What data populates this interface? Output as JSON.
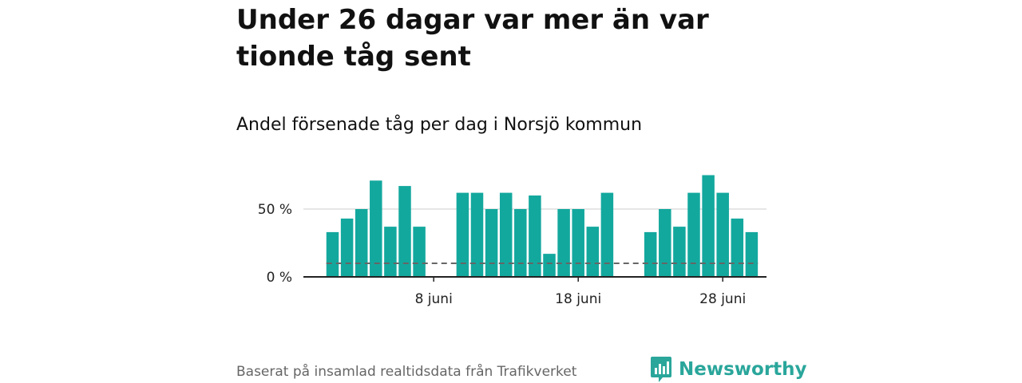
{
  "title": "Under 26 dagar var mer än var tionde tåg sent",
  "subtitle": "Andel försenade tåg per dag i Norsjö kommun",
  "source": "Baserat på insamlad realtidsdata från Trafikverket",
  "brand": "Newsworthy",
  "colors": {
    "bar": "#13a89e",
    "reference": "#666666",
    "grid": "#dddddd",
    "axis": "#222222",
    "brand": "#2aa69b"
  },
  "chart_data": {
    "type": "bar",
    "title": "Andel försenade tåg per dag i Norsjö kommun",
    "xlabel": "",
    "ylabel": "",
    "categories": [
      "1 juni",
      "2 juni",
      "3 juni",
      "4 juni",
      "5 juni",
      "6 juni",
      "7 juni",
      "8 juni",
      "9 juni",
      "10 juni",
      "11 juni",
      "12 juni",
      "13 juni",
      "14 juni",
      "15 juni",
      "16 juni",
      "17 juni",
      "18 juni",
      "19 juni",
      "20 juni",
      "21 juni",
      "22 juni",
      "23 juni",
      "24 juni",
      "25 juni",
      "26 juni",
      "27 juni",
      "28 juni",
      "29 juni",
      "30 juni"
    ],
    "values": [
      33,
      43,
      50,
      71,
      37,
      67,
      37,
      0,
      0,
      62,
      62,
      50,
      62,
      50,
      60,
      17,
      50,
      50,
      37,
      62,
      0,
      0,
      33,
      50,
      37,
      62,
      75,
      62,
      43,
      33
    ],
    "reference_line": 10,
    "ylim": [
      0,
      100
    ],
    "yticks": [
      {
        "value": 0,
        "label": "0 %"
      },
      {
        "value": 50,
        "label": "50 %"
      }
    ],
    "xticks": [
      {
        "index": 7,
        "label": "8 juni"
      },
      {
        "index": 17,
        "label": "18 juni"
      },
      {
        "index": 27,
        "label": "28 juni"
      }
    ]
  }
}
